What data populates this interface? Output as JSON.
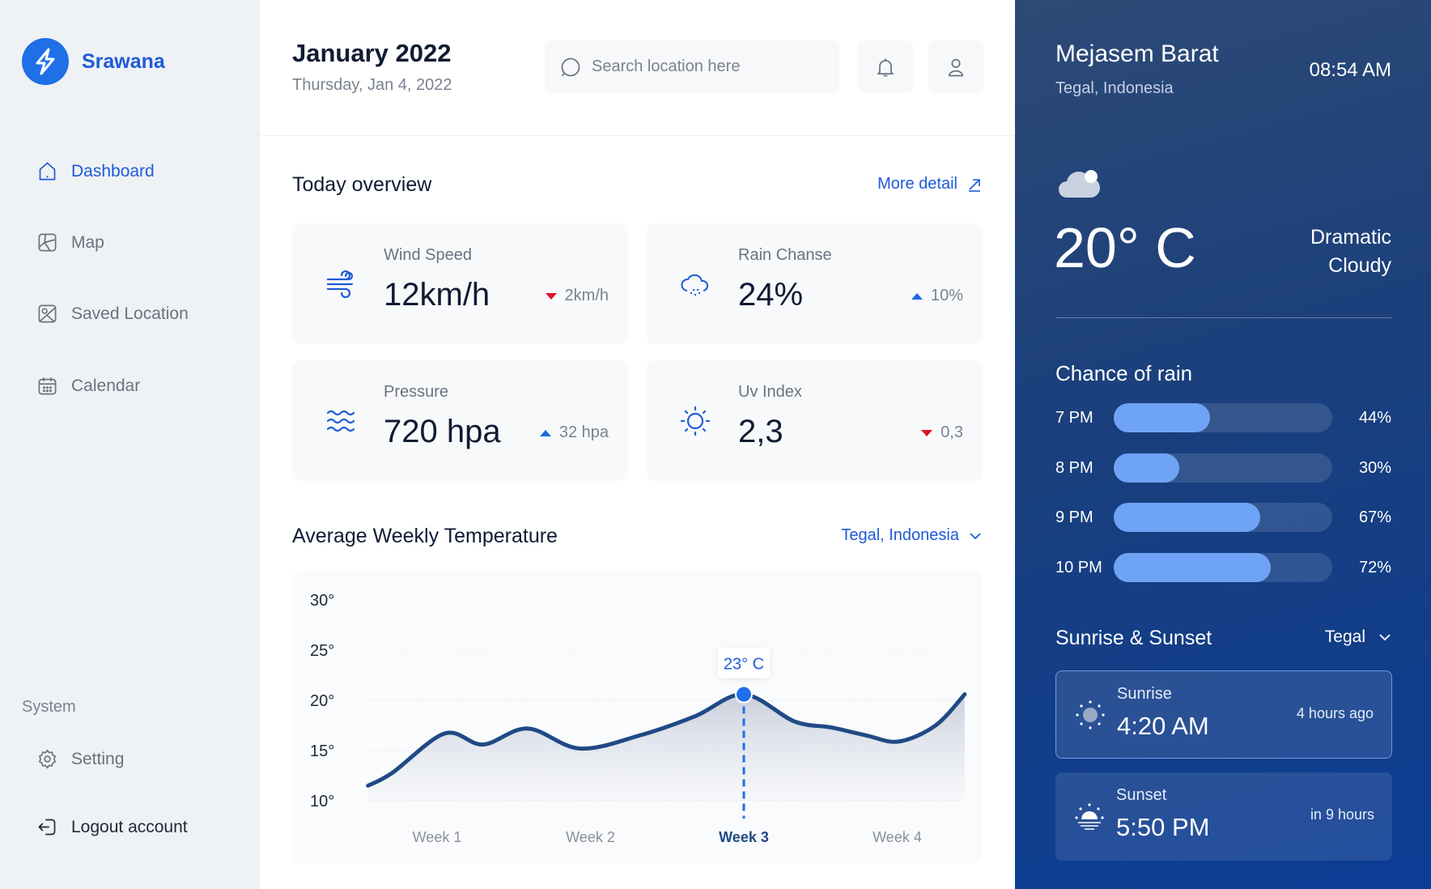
{
  "brand": {
    "name": "Srawana",
    "color": "#1e5bd8"
  },
  "sidebar": {
    "items": [
      {
        "label": "Dashboard",
        "icon": "home-icon",
        "active": true
      },
      {
        "label": "Map",
        "icon": "map-icon"
      },
      {
        "label": "Saved Location",
        "icon": "saved-location-icon"
      },
      {
        "label": "Calendar",
        "icon": "calendar-icon"
      }
    ],
    "system_label": "System",
    "setting": "Setting",
    "logout": "Logout account"
  },
  "header": {
    "title": "January 2022",
    "date": "Thursday, Jan 4, 2022",
    "search_placeholder": "Search location here"
  },
  "overview": {
    "title": "Today overview",
    "more": "More detail",
    "cards": [
      {
        "label": "Wind Speed",
        "value": "12km/h",
        "delta": "2km/h",
        "trend": "down",
        "icon": "wind-icon"
      },
      {
        "label": "Rain Chanse",
        "value": "24%",
        "delta": "10%",
        "trend": "up",
        "icon": "rain-cloud-icon"
      },
      {
        "label": "Pressure",
        "value": "720 hpa",
        "delta": "32 hpa",
        "trend": "up",
        "icon": "waves-icon"
      },
      {
        "label": "Uv Index",
        "value": "2,3",
        "delta": "0,3",
        "trend": "down",
        "icon": "sun-icon"
      }
    ]
  },
  "weekly": {
    "title": "Average Weekly Temperature",
    "location": "Tegal, Indonesia"
  },
  "chart_data": {
    "type": "area",
    "categories": [
      "Week 1",
      "Week 2",
      "Week 3",
      "Week 4"
    ],
    "highlighted": "Week 3",
    "tooltip": "23° C",
    "yticks": [
      "30°",
      "25°",
      "20°",
      "15°",
      "10°"
    ],
    "ylim": [
      10,
      30
    ],
    "grid": true,
    "x": [
      0.55,
      0.71,
      1.05,
      1.3,
      1.59,
      1.93,
      2.32,
      2.68,
      3.0,
      3.33,
      3.57,
      3.8,
      4.01,
      4.25,
      4.44
    ],
    "values": [
      11.5,
      12.8,
      16.7,
      15.6,
      17.2,
      15.2,
      16.5,
      18.4,
      20.6,
      17.9,
      17.3,
      16.5,
      15.9,
      17.5,
      20.6
    ],
    "line_color": "#1f4a85",
    "marker_color": "#1f6fe8"
  },
  "current": {
    "location": "Mejasem Barat",
    "region": "Tegal, Indonesia",
    "time": "08:54 AM",
    "temperature": "20° C",
    "condition_line1": "Dramatic",
    "condition_line2": "Cloudy"
  },
  "rain": {
    "title": "Chance of rain",
    "rows": [
      {
        "time": "7 PM",
        "percent": "44%",
        "value": 44
      },
      {
        "time": "8 PM",
        "percent": "30%",
        "value": 30
      },
      {
        "time": "9 PM",
        "percent": "67%",
        "value": 67
      },
      {
        "time": "10 PM",
        "percent": "72%",
        "value": 72
      }
    ]
  },
  "sun": {
    "title": "Sunrise & Sunset",
    "location": "Tegal",
    "sunrise": {
      "label": "Sunrise",
      "time": "4:20 AM",
      "relative": "4 hours ago"
    },
    "sunset": {
      "label": "Sunset",
      "time": "5:50 PM",
      "relative": "in 9 hours"
    }
  }
}
